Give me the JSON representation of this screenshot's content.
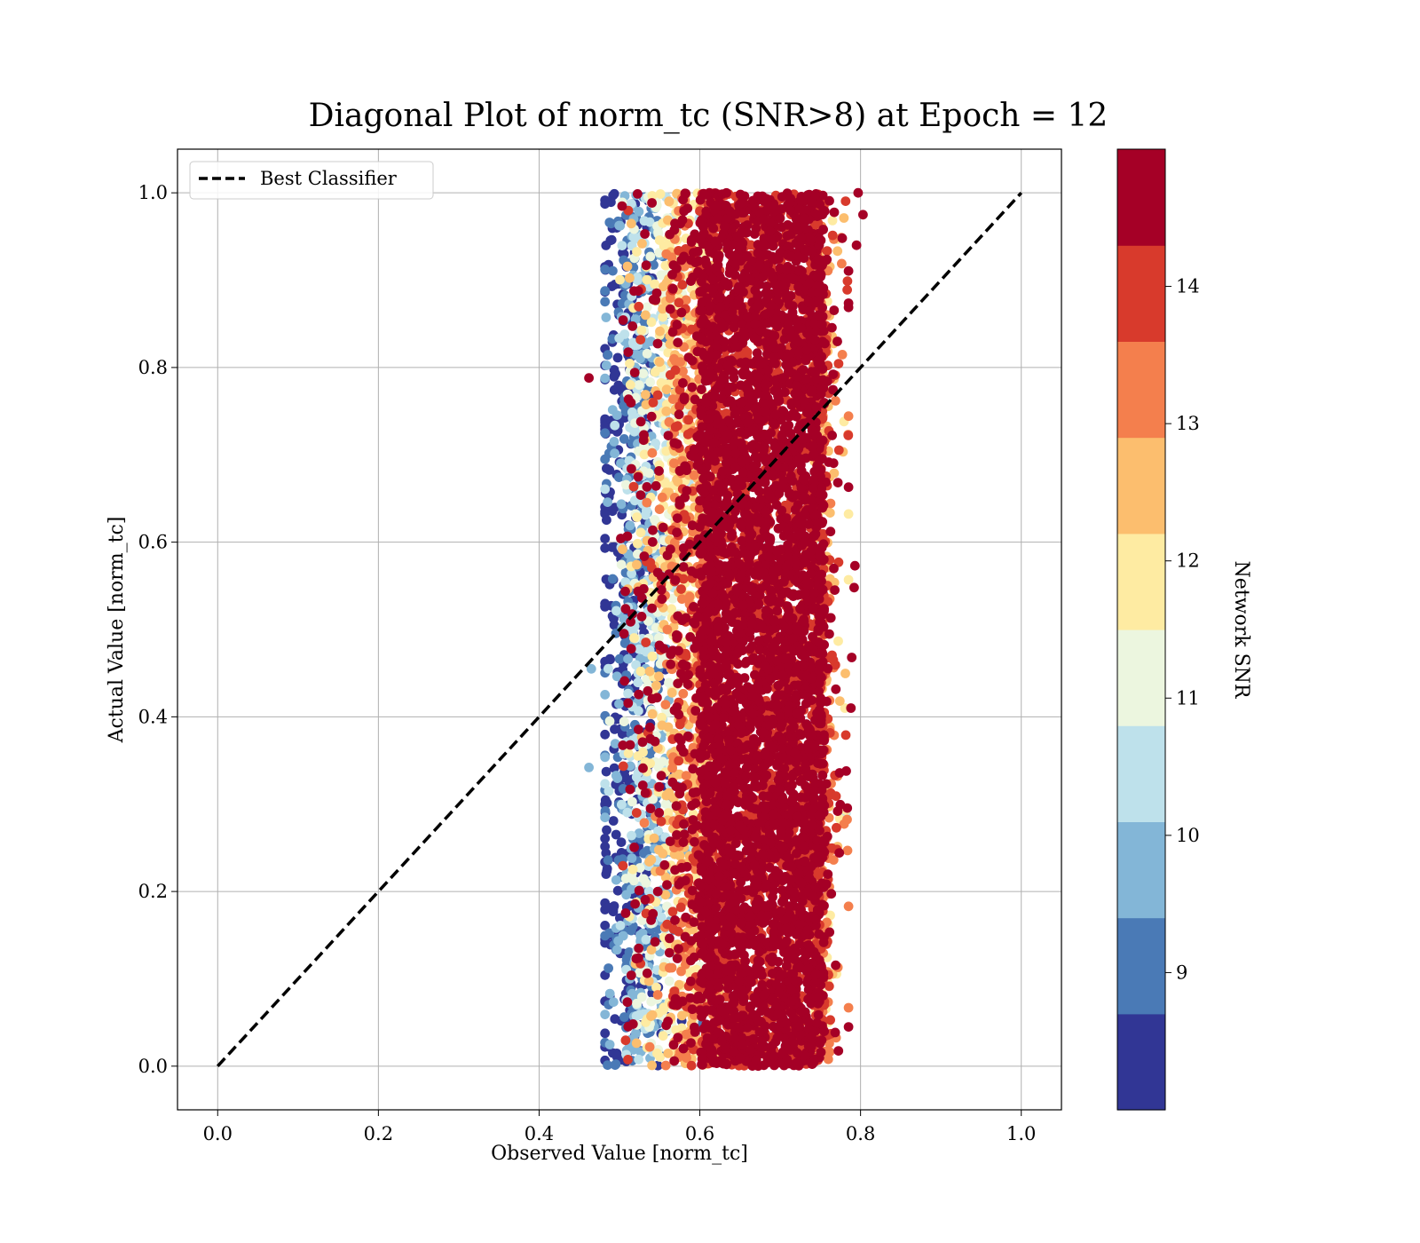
{
  "chart_data": {
    "type": "scatter",
    "title": "Diagonal Plot of norm_tc (SNR>8) at Epoch = 12",
    "xlabel": "Observed Value [norm_tc]",
    "ylabel": "Actual Value [norm_tc]",
    "xlim": [
      -0.05,
      1.05
    ],
    "ylim": [
      -0.05,
      1.05
    ],
    "xticks": [
      0.0,
      0.2,
      0.4,
      0.6,
      0.8,
      1.0
    ],
    "xtick_labels": [
      "0.0",
      "0.2",
      "0.4",
      "0.6",
      "0.8",
      "1.0"
    ],
    "yticks": [
      0.0,
      0.2,
      0.4,
      0.6,
      0.8,
      1.0
    ],
    "ytick_labels": [
      "0.0",
      "0.2",
      "0.4",
      "0.6",
      "0.8",
      "1.0"
    ],
    "grid": true,
    "legend": {
      "placement": "top-left",
      "entries": [
        {
          "label": "Best Classifier",
          "style": "dashed",
          "color": "#000000"
        }
      ]
    },
    "reference_line": {
      "name": "Best Classifier",
      "x": [
        0.0,
        1.0
      ],
      "y": [
        0.0,
        1.0
      ],
      "style": "dashed",
      "color": "#000000"
    },
    "scatter_summary": {
      "description_bands": [
        {
          "snr_range": [
            8,
            10.5
          ],
          "observed_range": [
            0.48,
            0.58
          ],
          "actual_range": [
            0.0,
            1.0
          ]
        },
        {
          "snr_range": [
            10.5,
            13
          ],
          "observed_range": [
            0.53,
            0.62
          ],
          "actual_range": [
            0.0,
            1.0
          ]
        },
        {
          "snr_range": [
            13,
            15
          ],
          "observed_range": [
            0.58,
            0.78
          ],
          "actual_range": [
            0.0,
            1.0
          ]
        }
      ],
      "outliers": [
        {
          "x": 0.462,
          "y": 0.788,
          "snr": 14.8
        },
        {
          "x": 0.462,
          "y": 0.342,
          "snr": 10.0
        },
        {
          "x": 0.797,
          "y": 1.0,
          "snr": 14.5
        },
        {
          "x": 0.803,
          "y": 0.975,
          "snr": 14.8
        },
        {
          "x": 0.795,
          "y": 0.94,
          "snr": 14.8
        },
        {
          "x": 0.793,
          "y": 0.573,
          "snr": 14.3
        },
        {
          "x": 0.792,
          "y": 0.548,
          "snr": 14.8
        },
        {
          "x": 0.789,
          "y": 0.468,
          "snr": 14.3
        },
        {
          "x": 0.788,
          "y": 0.41,
          "snr": 14.8
        },
        {
          "x": 0.782,
          "y": 0.29,
          "snr": 10.5
        },
        {
          "x": 0.785,
          "y": 0.045,
          "snr": 14.8
        },
        {
          "x": 0.465,
          "y": 0.455,
          "snr": 9.7
        }
      ]
    },
    "colorbar": {
      "label": "Network SNR",
      "range": [
        8.0,
        15.0
      ],
      "ticks": [
        9,
        10,
        11,
        12,
        13,
        14
      ],
      "tick_labels": [
        "9",
        "10",
        "11",
        "12",
        "13",
        "14"
      ],
      "colors": [
        "#313695",
        "#4575b4",
        "#74add1",
        "#abd9e9",
        "#e0f3f8",
        "#ffffbf",
        "#fee090",
        "#fdae61",
        "#f46d43",
        "#d73027",
        "#a50026"
      ],
      "segment_colors": [
        "#313695",
        "#4a7ab6",
        "#83b6d7",
        "#bee1eb",
        "#ecf6df",
        "#feeba2",
        "#fcbe6e",
        "#f47f4d",
        "#d83a2c",
        "#a50026"
      ]
    }
  }
}
